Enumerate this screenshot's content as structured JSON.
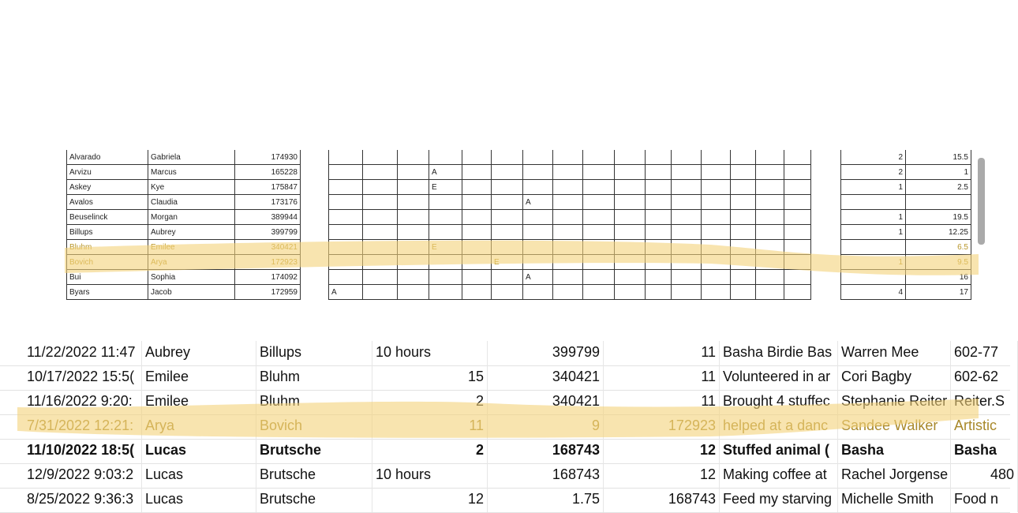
{
  "roster": {
    "rows": [
      {
        "last": "Alvarado",
        "first": "Gabriela",
        "id": "174930",
        "marks": {},
        "count": "2",
        "total": "15.5",
        "highlighted": false
      },
      {
        "last": "Arvizu",
        "first": "Marcus",
        "id": "165228",
        "marks": {
          "3": "A"
        },
        "count": "2",
        "total": "1",
        "highlighted": false
      },
      {
        "last": "Askey",
        "first": "Kye",
        "id": "175847",
        "marks": {
          "3": "E"
        },
        "count": "1",
        "total": "2.5",
        "highlighted": false
      },
      {
        "last": "Avalos",
        "first": "Claudia",
        "id": "173176",
        "marks": {
          "6": "A"
        },
        "count": "",
        "total": "",
        "highlighted": false
      },
      {
        "last": "Beuselinck",
        "first": "Morgan",
        "id": "389944",
        "marks": {},
        "count": "1",
        "total": "19.5",
        "highlighted": false
      },
      {
        "last": "Billups",
        "first": "Aubrey",
        "id": "399799",
        "marks": {},
        "count": "1",
        "total": "12.25",
        "highlighted": false
      },
      {
        "last": "Bluhm",
        "first": "Emilee",
        "id": "340421",
        "marks": {
          "3": "E"
        },
        "count": "",
        "total": "6.5",
        "highlighted": true
      },
      {
        "last": "Bovich",
        "first": "Arya",
        "id": "172923",
        "marks": {
          "5": "E"
        },
        "count": "1",
        "total": "9.5",
        "highlighted": true
      },
      {
        "last": "Bui",
        "first": "Sophia",
        "id": "174092",
        "marks": {
          "6": "A"
        },
        "count": "",
        "total": "16",
        "highlighted": false
      },
      {
        "last": "Byars",
        "first": "Jacob",
        "id": "172959",
        "marks": {
          "0": "A"
        },
        "count": "4",
        "total": "17",
        "highlighted": false
      }
    ]
  },
  "responses": {
    "rows": [
      {
        "cells": [
          "11/22/2022 11:47",
          "Aubrey",
          "Billups",
          "10 hours",
          "399799",
          "11",
          "Basha Birdie Bas",
          "Warren Mee",
          "602-77"
        ],
        "bold": false,
        "highlighted": false
      },
      {
        "cells": [
          "10/17/2022 15:5(",
          "Emilee",
          "Bluhm",
          "15",
          "340421",
          "11",
          "Volunteered in ar",
          "Cori Bagby",
          "602-62"
        ],
        "bold": false,
        "highlighted": false
      },
      {
        "cells": [
          "11/16/2022 9:20:",
          "Emilee",
          "Bluhm",
          "2",
          "340421",
          "11",
          "Brought 4 stuffec",
          "Stephanie Reiter",
          "Reiter.S"
        ],
        "bold": false,
        "highlighted": false
      },
      {
        "cells": [
          "7/31/2022 12:21:",
          "Arya",
          "Bovich",
          "11",
          "9",
          "172923",
          "helped at a danc",
          "Sandee Walker",
          "Artistic"
        ],
        "bold": false,
        "highlighted": true
      },
      {
        "cells": [
          "11/10/2022 18:5(",
          "Lucas",
          "Brutsche",
          "2",
          "168743",
          "12",
          "Stuffed animal (",
          "Basha",
          "Basha"
        ],
        "bold": true,
        "highlighted": false
      },
      {
        "cells": [
          "12/9/2022 9:03:2",
          "Lucas",
          "Brutsche",
          "10 hours",
          "168743",
          "12",
          "Making coffee at",
          "Rachel Jorgense",
          "480"
        ],
        "bold": false,
        "highlighted": false
      },
      {
        "cells": [
          "8/25/2022 9:36:3",
          "Lucas",
          "Brutsche",
          "12",
          "1.75",
          "168743",
          "Feed my starving",
          "Michelle Smith",
          "Food n"
        ],
        "bold": false,
        "highlighted": false
      }
    ]
  },
  "highlight_color": "#f3d27a"
}
